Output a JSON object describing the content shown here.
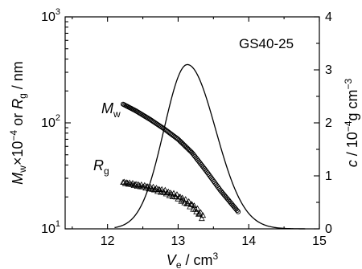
{
  "chart_data": {
    "type": "scatter",
    "panel_label": "GS40-25",
    "x_axis": {
      "label_main": "V",
      "label_sub": "e",
      "label_unit": " / cm",
      "label_sup": "3",
      "range": [
        11.4,
        15.0
      ],
      "ticks": [
        12,
        13,
        14,
        15
      ],
      "tick_labels": [
        "12",
        "13",
        "14",
        "15"
      ]
    },
    "y_left": {
      "scale": "log",
      "range": [
        10,
        1000
      ],
      "tick_values": [
        10,
        100,
        1000
      ],
      "tick_bases": [
        "10",
        "10",
        "10"
      ],
      "tick_exponents": [
        "1",
        "2",
        "3"
      ],
      "label_parts": {
        "m": "M",
        "w_sub": "w",
        "times": "×10",
        "exp": "−4",
        "or": " or ",
        "r": "R",
        "g_sub": "g",
        "unit": " / nm"
      }
    },
    "y_right": {
      "scale": "linear",
      "range": [
        0,
        4
      ],
      "ticks": [
        0,
        1,
        2,
        3,
        4
      ],
      "tick_labels": [
        "0",
        "1",
        "2",
        "3",
        "4"
      ],
      "label_parts": {
        "c": "c",
        "slash": " / 10",
        "exp": "−4",
        "unit": "g cm",
        "exp2": "−3"
      }
    },
    "series": [
      {
        "name_main": "M",
        "name_sub": "w",
        "marker": "circle",
        "axis": "left",
        "x_start": 12.22,
        "x_end": 13.85,
        "x": [
          12.22,
          12.4,
          12.6,
          12.8,
          13.0,
          13.2,
          13.4,
          13.6,
          13.85
        ],
        "y": [
          150,
          130,
          108,
          88,
          70,
          52,
          35,
          23,
          14.5
        ]
      },
      {
        "name_main": "R",
        "name_sub": "g",
        "marker": "triangle",
        "axis": "left",
        "x_start": 12.22,
        "x_end": 13.35,
        "x": [
          12.22,
          12.4,
          12.6,
          12.8,
          13.0,
          13.2,
          13.35
        ],
        "y": [
          27.5,
          26,
          24.5,
          22.5,
          20,
          16.5,
          13
        ]
      },
      {
        "name_main": "c",
        "marker": "none",
        "axis": "right",
        "style": "line",
        "peak_x": 13.13,
        "peak_y": 3.1,
        "sigma_left": 0.33,
        "sigma_right": 0.4,
        "x_start": 12.1,
        "x_end": 14.8
      }
    ]
  }
}
